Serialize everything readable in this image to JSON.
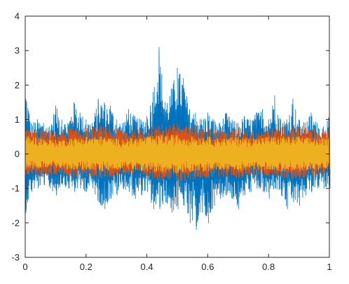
{
  "chart_data": {
    "type": "line",
    "title": "",
    "xlabel": "",
    "ylabel": "",
    "xlim": [
      0,
      1
    ],
    "ylim": [
      -3,
      4
    ],
    "xticks": [
      0,
      0.2,
      0.4,
      0.6,
      0.8,
      1
    ],
    "yticks": [
      -3,
      -2,
      -1,
      0,
      1,
      2,
      3,
      4
    ],
    "x_tick_labels": [
      "0",
      "0.2",
      "0.4",
      "0.6",
      "0.8",
      "1"
    ],
    "y_tick_labels": [
      "-3",
      "-2",
      "-1",
      "0",
      "1",
      "2",
      "3",
      "4"
    ],
    "grid": false,
    "series": [
      {
        "color": "#0072BD",
        "x": [
          0,
          0.02,
          0.04,
          0.06,
          0.08,
          0.1,
          0.12,
          0.14,
          0.16,
          0.18,
          0.2,
          0.22,
          0.24,
          0.26,
          0.28,
          0.3,
          0.32,
          0.34,
          0.36,
          0.38,
          0.4,
          0.42,
          0.44,
          0.46,
          0.48,
          0.5,
          0.52,
          0.54,
          0.56,
          0.58,
          0.6,
          0.62,
          0.64,
          0.66,
          0.68,
          0.7,
          0.72,
          0.74,
          0.76,
          0.78,
          0.8,
          0.82,
          0.84,
          0.86,
          0.88,
          0.9,
          0.92,
          0.94,
          0.96,
          0.98,
          1
        ],
        "upper": [
          2.0,
          0.9,
          1.0,
          0.9,
          0.8,
          1.4,
          1.0,
          0.9,
          1.5,
          1.2,
          1.0,
          0.9,
          1.6,
          1.5,
          1.4,
          1.0,
          0.9,
          1.3,
          1.1,
          1.0,
          1.1,
          1.8,
          3.1,
          1.5,
          1.9,
          2.5,
          2.2,
          1.3,
          1.2,
          1.0,
          1.2,
          1.0,
          0.9,
          1.2,
          1.0,
          0.9,
          1.1,
          1.0,
          1.2,
          1.3,
          1.0,
          1.7,
          1.0,
          1.0,
          1.6,
          1.0,
          0.9,
          1.2,
          0.9,
          0.8,
          1.1
        ],
        "lower": [
          -1.7,
          -1.1,
          -1.0,
          -0.9,
          -1.0,
          -1.2,
          -0.9,
          -1.0,
          -1.1,
          -1.0,
          -1.1,
          -1.0,
          -1.4,
          -1.6,
          -1.3,
          -1.2,
          -1.0,
          -1.1,
          -1.3,
          -1.2,
          -1.1,
          -1.6,
          -1.6,
          -1.4,
          -1.7,
          -1.6,
          -1.5,
          -2.0,
          -2.2,
          -1.7,
          -2.0,
          -1.5,
          -1.3,
          -1.2,
          -1.3,
          -1.6,
          -1.2,
          -1.1,
          -1.0,
          -1.1,
          -1.3,
          -1.0,
          -1.2,
          -1.6,
          -1.4,
          -1.5,
          -1.2,
          -1.1,
          -1.0,
          -1.0,
          -1.0
        ]
      },
      {
        "color": "#D95319",
        "x": [
          0,
          0.05,
          0.1,
          0.15,
          0.2,
          0.25,
          0.3,
          0.35,
          0.4,
          0.45,
          0.5,
          0.55,
          0.6,
          0.65,
          0.7,
          0.75,
          0.8,
          0.85,
          0.9,
          0.95,
          1
        ],
        "upper": [
          0.75,
          0.7,
          0.65,
          0.75,
          0.75,
          0.8,
          0.75,
          0.7,
          0.75,
          0.85,
          0.9,
          0.8,
          0.75,
          0.7,
          0.75,
          0.7,
          0.75,
          0.8,
          0.8,
          0.75,
          0.7
        ],
        "lower": [
          -0.6,
          -0.65,
          -0.6,
          -0.7,
          -0.65,
          -0.7,
          -0.65,
          -0.6,
          -0.7,
          -0.75,
          -0.8,
          -0.75,
          -0.7,
          -0.65,
          -0.7,
          -0.6,
          -0.65,
          -0.7,
          -0.75,
          -0.65,
          -0.6
        ]
      },
      {
        "color": "#EDB120",
        "x": [
          0,
          0.05,
          0.1,
          0.15,
          0.2,
          0.25,
          0.3,
          0.35,
          0.4,
          0.45,
          0.5,
          0.55,
          0.6,
          0.65,
          0.7,
          0.75,
          0.8,
          0.85,
          0.9,
          0.95,
          1
        ],
        "upper": [
          0.55,
          0.45,
          0.4,
          0.45,
          0.5,
          0.5,
          0.45,
          0.45,
          0.5,
          0.55,
          0.55,
          0.5,
          0.5,
          0.45,
          0.5,
          0.45,
          0.5,
          0.5,
          0.5,
          0.45,
          0.45
        ],
        "lower": [
          -0.45,
          -0.4,
          -0.4,
          -0.45,
          -0.45,
          -0.5,
          -0.45,
          -0.45,
          -0.5,
          -0.55,
          -0.55,
          -0.5,
          -0.5,
          -0.45,
          -0.5,
          -0.45,
          -0.45,
          -0.5,
          -0.5,
          -0.45,
          -0.45
        ]
      }
    ]
  }
}
